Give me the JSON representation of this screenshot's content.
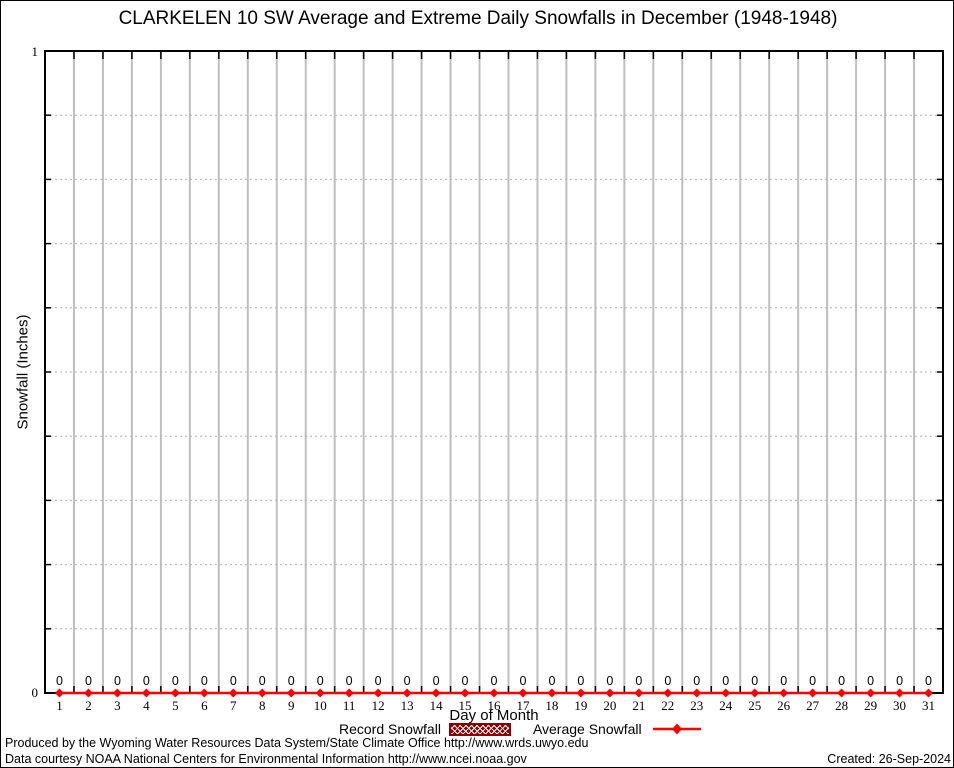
{
  "chart_data": {
    "type": "line",
    "title": "CLARKELEN 10 SW Average and Extreme Daily Snowfalls in December (1948-1948)",
    "xlabel": "Day of Month",
    "ylabel": "Snowfall (Inches)",
    "xlim": [
      0.5,
      31.5
    ],
    "ylim": [
      0,
      1
    ],
    "ytick_labels": {
      "min": "0",
      "max": "1"
    },
    "y_minor_step": 0.1,
    "grid": "vertical solid lines at day boundaries, horizontal dotted lines at 0.1 steps",
    "legend_position": "bottom",
    "x": [
      1,
      2,
      3,
      4,
      5,
      6,
      7,
      8,
      9,
      10,
      11,
      12,
      13,
      14,
      15,
      16,
      17,
      18,
      19,
      20,
      21,
      22,
      23,
      24,
      25,
      26,
      27,
      28,
      29,
      30,
      31
    ],
    "series": [
      {
        "name": "Record Snowfall",
        "style": "hatched-box",
        "color": "#8b0000",
        "values": [
          0,
          0,
          0,
          0,
          0,
          0,
          0,
          0,
          0,
          0,
          0,
          0,
          0,
          0,
          0,
          0,
          0,
          0,
          0,
          0,
          0,
          0,
          0,
          0,
          0,
          0,
          0,
          0,
          0,
          0,
          0
        ]
      },
      {
        "name": "Average Snowfall",
        "style": "line-marker",
        "color": "#ff0000",
        "values": [
          0,
          0,
          0,
          0,
          0,
          0,
          0,
          0,
          0,
          0,
          0,
          0,
          0,
          0,
          0,
          0,
          0,
          0,
          0,
          0,
          0,
          0,
          0,
          0,
          0,
          0,
          0,
          0,
          0,
          0,
          0
        ]
      }
    ],
    "point_labels": [
      "0",
      "0",
      "0",
      "0",
      "0",
      "0",
      "0",
      "0",
      "0",
      "0",
      "0",
      "0",
      "0",
      "0",
      "0",
      "0",
      "0",
      "0",
      "0",
      "0",
      "0",
      "0",
      "0",
      "0",
      "0",
      "0",
      "0",
      "0",
      "0",
      "0",
      "0"
    ]
  },
  "colors": {
    "average_line": "#ff0000",
    "record_swatch": "#8b0000",
    "grid_vertical": "#bebebe",
    "grid_dotted": "#b0b0b0",
    "border": "#000000"
  },
  "footer": {
    "line1": "Produced by the Wyoming Water Resources Data System/State Climate Office http://www.wrds.uwyo.edu",
    "line2": "Data courtesy NOAA National Centers for Environmental Information http://www.ncei.noaa.gov",
    "created": "Created: 26-Sep-2024"
  }
}
